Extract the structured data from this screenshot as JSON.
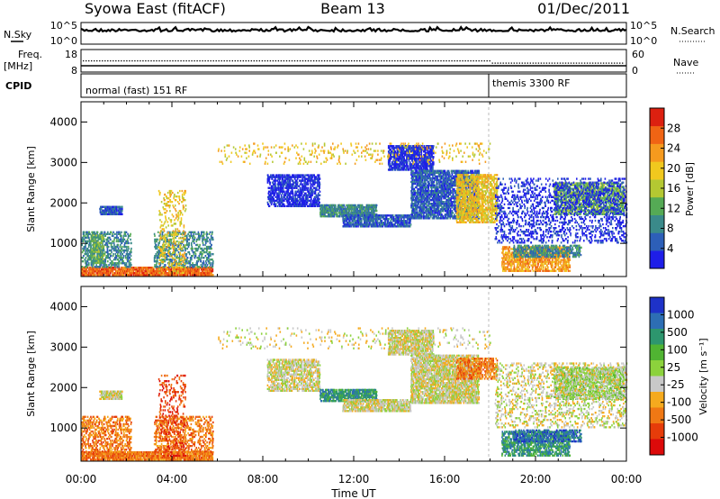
{
  "header": {
    "station": "Syowa East (fitACF)",
    "beam": "Beam 13",
    "date": "01/Dec/2011"
  },
  "panels": {
    "nsky": {
      "left_label": "N.Sky",
      "left_ticks": [
        "10^5",
        "10^0"
      ],
      "right_label": "N.Search",
      "right_ticks": [
        "10^5",
        "10^0"
      ]
    },
    "freq": {
      "left_label_1": "Freq.",
      "left_label_2": "[MHz]",
      "left_ticks": [
        "18",
        "8"
      ],
      "right_label": "Nave",
      "right_ticks": [
        "60",
        "0"
      ]
    },
    "cpid": {
      "label": "CPID",
      "modes": [
        {
          "text": "normal (fast) 151 RF",
          "start_hour": 0
        },
        {
          "text": "themis 3300 RF",
          "start_hour": 18
        }
      ]
    }
  },
  "chart_data": [
    {
      "type": "heatmap",
      "name": "power",
      "ylabel": "Slant Range [km]",
      "xlabel": "Time UT",
      "xlim_hours": [
        0,
        24
      ],
      "ylim_km": [
        180,
        4500
      ],
      "yticks": [
        1000,
        2000,
        3000,
        4000
      ],
      "xticks": [
        "00:00",
        "04:00",
        "08:00",
        "12:00",
        "16:00",
        "20:00",
        "00:00"
      ],
      "colorbar": {
        "label": "Power [dB]",
        "ticks": [
          "4",
          "8",
          "12",
          "16",
          "20",
          "24",
          "28"
        ],
        "colors": [
          "#1e1ee8",
          "#2d5fb8",
          "#3a8a8a",
          "#55aa55",
          "#b4c832",
          "#f0c81e",
          "#f59a1e",
          "#f06414",
          "#dc2010"
        ]
      },
      "regions": [
        {
          "t0": 0.0,
          "t1": 5.8,
          "r0": 200,
          "r1": 420,
          "c": 7,
          "d": 0.55
        },
        {
          "t0": 0.0,
          "t1": 2.2,
          "r0": 400,
          "r1": 1300,
          "c": 2,
          "d": 0.25
        },
        {
          "t0": 0.8,
          "t1": 1.8,
          "r0": 1700,
          "r1": 1900,
          "c": 1,
          "d": 0.6
        },
        {
          "t0": 3.2,
          "t1": 5.8,
          "r0": 400,
          "r1": 1300,
          "c": 2,
          "d": 0.2
        },
        {
          "t0": 0.4,
          "t1": 1.0,
          "r0": 500,
          "r1": 1200,
          "c": 3,
          "d": 0.3
        },
        {
          "t0": 3.4,
          "t1": 4.6,
          "r0": 250,
          "r1": 2300,
          "c": 5,
          "d": 0.1
        },
        {
          "t0": 8.2,
          "t1": 10.5,
          "r0": 1900,
          "r1": 2700,
          "c": 0,
          "d": 0.35
        },
        {
          "t0": 10.5,
          "t1": 13.0,
          "r0": 1650,
          "r1": 1950,
          "c": 2,
          "d": 0.5
        },
        {
          "t0": 11.5,
          "t1": 14.5,
          "r0": 1400,
          "r1": 1700,
          "c": 1,
          "d": 0.45
        },
        {
          "t0": 13.5,
          "t1": 15.5,
          "r0": 2800,
          "r1": 3400,
          "c": 0,
          "d": 0.45
        },
        {
          "t0": 14.5,
          "t1": 17.5,
          "r0": 1600,
          "r1": 2800,
          "c": 1,
          "d": 0.45
        },
        {
          "t0": 16.5,
          "t1": 18.3,
          "r0": 1500,
          "r1": 2700,
          "c": 5,
          "d": 0.35
        },
        {
          "t0": 18.5,
          "t1": 21.5,
          "r0": 300,
          "r1": 900,
          "c": 6,
          "d": 0.35
        },
        {
          "t0": 19.0,
          "t1": 22.0,
          "r0": 650,
          "r1": 950,
          "c": 2,
          "d": 0.3
        },
        {
          "t0": 20.8,
          "t1": 23.9,
          "r0": 1700,
          "r1": 2500,
          "c": 3,
          "d": 0.35
        },
        {
          "t0": 18.2,
          "t1": 24.0,
          "r0": 1000,
          "r1": 2600,
          "c": 0,
          "d": 0.12
        },
        {
          "t0": 6.0,
          "t1": 18.0,
          "r0": 2950,
          "r1": 3450,
          "c": 5,
          "d": 0.04
        }
      ]
    },
    {
      "type": "heatmap",
      "name": "velocity",
      "ylabel": "Slant Range [km]",
      "xlabel": "Time UT",
      "xlim_hours": [
        0,
        24
      ],
      "ylim_km": [
        180,
        4500
      ],
      "yticks": [
        1000,
        2000,
        3000,
        4000
      ],
      "xticks": [
        "00:00",
        "04:00",
        "08:00",
        "12:00",
        "16:00",
        "20:00",
        "00:00"
      ],
      "colorbar": {
        "label": "Velocity [m s⁻¹]",
        "ticks": [
          "1000",
          "500",
          "100",
          "25",
          "-25",
          "-100",
          "-500",
          "-1000"
        ],
        "colors": [
          "#1e32c8",
          "#2d6eb4",
          "#2d966e",
          "#50b432",
          "#8cd23c",
          "#c8c8c8",
          "#f5aa1e",
          "#f07814",
          "#e63c0a",
          "#dc0a0a"
        ]
      },
      "regions": [
        {
          "t0": 0.0,
          "t1": 5.8,
          "r0": 200,
          "r1": 420,
          "c": 7,
          "d": 0.55
        },
        {
          "t0": 0.0,
          "t1": 2.2,
          "r0": 400,
          "r1": 1300,
          "c": 7,
          "d": 0.22
        },
        {
          "t0": 0.8,
          "t1": 1.8,
          "r0": 1700,
          "r1": 1900,
          "c": 5,
          "d": 0.55
        },
        {
          "t0": 3.2,
          "t1": 5.8,
          "r0": 400,
          "r1": 1300,
          "c": 7,
          "d": 0.2
        },
        {
          "t0": 3.4,
          "t1": 4.6,
          "r0": 250,
          "r1": 2300,
          "c": 8,
          "d": 0.1
        },
        {
          "t0": 8.2,
          "t1": 10.5,
          "r0": 1900,
          "r1": 2700,
          "c": 5,
          "d": 0.35
        },
        {
          "t0": 10.5,
          "t1": 13.0,
          "r0": 1650,
          "r1": 1950,
          "c": 2,
          "d": 0.45
        },
        {
          "t0": 11.5,
          "t1": 14.5,
          "r0": 1400,
          "r1": 1700,
          "c": 5,
          "d": 0.45
        },
        {
          "t0": 13.5,
          "t1": 15.5,
          "r0": 2800,
          "r1": 3400,
          "c": 5,
          "d": 0.45
        },
        {
          "t0": 14.5,
          "t1": 17.5,
          "r0": 1600,
          "r1": 2800,
          "c": 5,
          "d": 0.45
        },
        {
          "t0": 16.5,
          "t1": 18.3,
          "r0": 2200,
          "r1": 2700,
          "c": 7,
          "d": 0.3
        },
        {
          "t0": 18.5,
          "t1": 21.5,
          "r0": 300,
          "r1": 900,
          "c": 2,
          "d": 0.35
        },
        {
          "t0": 19.0,
          "t1": 22.0,
          "r0": 650,
          "r1": 950,
          "c": 1,
          "d": 0.3
        },
        {
          "t0": 20.8,
          "t1": 23.9,
          "r0": 1700,
          "r1": 2500,
          "c": 4,
          "d": 0.35
        },
        {
          "t0": 18.2,
          "t1": 24.0,
          "r0": 1000,
          "r1": 2600,
          "c": 5,
          "d": 0.12
        },
        {
          "t0": 6.0,
          "t1": 18.0,
          "r0": 2950,
          "r1": 3450,
          "c": 5,
          "d": 0.04
        }
      ]
    }
  ]
}
